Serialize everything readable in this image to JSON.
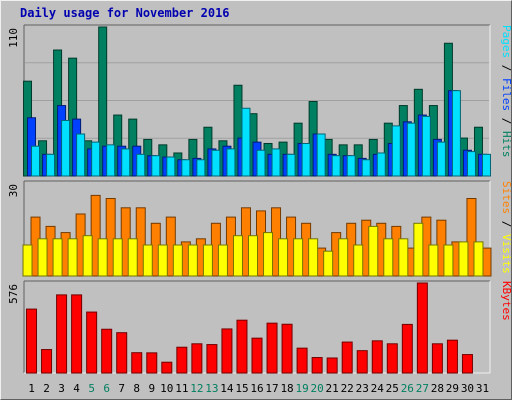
{
  "chart_data": {
    "type": "bar",
    "title": "Daily usage for November 2016",
    "x": [
      "1",
      "2",
      "3",
      "4",
      "5",
      "6",
      "7",
      "8",
      "9",
      "10",
      "11",
      "12",
      "13",
      "14",
      "15",
      "16",
      "17",
      "18",
      "19",
      "20",
      "21",
      "22",
      "23",
      "24",
      "25",
      "26",
      "27",
      "28",
      "29",
      "30",
      "31"
    ],
    "weekend_days": [
      "5",
      "6",
      "12",
      "13",
      "19",
      "20",
      "26",
      "27"
    ],
    "colors": {
      "hits": "#008060",
      "files": "#0040ff",
      "pages": "#00e0ff",
      "visits": "#ffff00",
      "sites": "#ff8000",
      "kbytes": "#ff0000",
      "weekday_label": "#000000",
      "weekend_label": "#008060",
      "title": "#0000b0"
    },
    "panels": [
      {
        "id": "hits",
        "ymax": 110,
        "ymax_label": "110",
        "series": [
          {
            "name": "Hits",
            "color": "#008060",
            "values": [
              70,
              26,
              93,
              87,
              26,
              110,
              45,
              42,
              27,
              23,
              17,
              27,
              36,
              26,
              67,
              46,
              24,
              25,
              39,
              55,
              27,
              23,
              23,
              27,
              39,
              52,
              64,
              52,
              98,
              28,
              36
            ]
          },
          {
            "name": "Files",
            "color": "#0040ff",
            "values": [
              43,
              16,
              52,
              42,
              20,
              22,
              22,
              22,
              15,
              14,
              12,
              13,
              20,
              22,
              28,
              25,
              16,
              16,
              24,
              31,
              16,
              15,
              13,
              16,
              24,
              40,
              45,
              27,
              63,
              19,
              16
            ]
          },
          {
            "name": "Pages",
            "color": "#00e0ff",
            "values": [
              22,
              16,
              41,
              31,
              25,
              23,
              20,
              16,
              15,
              14,
              12,
              12,
              19,
              20,
              50,
              19,
              20,
              16,
              24,
              31,
              15,
              15,
              12,
              17,
              37,
              39,
              44,
              25,
              63,
              18,
              16
            ]
          }
        ]
      },
      {
        "id": "visits",
        "ymax": 30,
        "ymax_label": "30",
        "series": [
          {
            "name": "Sites",
            "color": "#ff8000",
            "values": [
              19,
              16,
              14,
              20,
              26,
              25,
              22,
              22,
              17,
              19,
              11,
              12,
              17,
              19,
              22,
              21,
              22,
              19,
              17,
              9,
              14,
              17,
              18,
              17,
              16,
              9,
              19,
              18,
              11,
              25,
              9
            ]
          },
          {
            "name": "Visits",
            "color": "#ffff00",
            "values": [
              10,
              12,
              12,
              12,
              13,
              12,
              12,
              12,
              10,
              10,
              10,
              10,
              10,
              10,
              13,
              13,
              14,
              12,
              12,
              12,
              8,
              12,
              10,
              16,
              12,
              12,
              17,
              10,
              10,
              11,
              11
            ]
          }
        ]
      },
      {
        "id": "kbytes",
        "ymax": 576,
        "ymax_label": "576",
        "series": [
          {
            "name": "KBytes",
            "color": "#ff0000",
            "values": [
              409,
              150,
              500,
              500,
              390,
              280,
              258,
              130,
              129,
              69,
              165,
              187,
              182,
              282,
              338,
              223,
              319,
              312,
              159,
              99,
              96,
              198,
              143,
              206,
              187,
              311,
              576,
              187,
              210,
              118,
              0
            ]
          }
        ]
      }
    ],
    "right_labels": [
      {
        "panel": "hits",
        "parts": [
          {
            "text": "Pages",
            "color": "#00e0ff"
          },
          {
            "text": " / ",
            "color": "#000000"
          },
          {
            "text": "Files",
            "color": "#0040ff"
          },
          {
            "text": " / ",
            "color": "#000000"
          },
          {
            "text": "Hits",
            "color": "#008060"
          }
        ]
      },
      {
        "panel": "visits",
        "parts": [
          {
            "text": "Sites",
            "color": "#ff8000"
          },
          {
            "text": " / ",
            "color": "#000000"
          },
          {
            "text": "Visits",
            "color": "#ffff00"
          }
        ]
      },
      {
        "panel": "kbytes",
        "parts": [
          {
            "text": "KBytes",
            "color": "#ff0000"
          }
        ]
      }
    ]
  }
}
